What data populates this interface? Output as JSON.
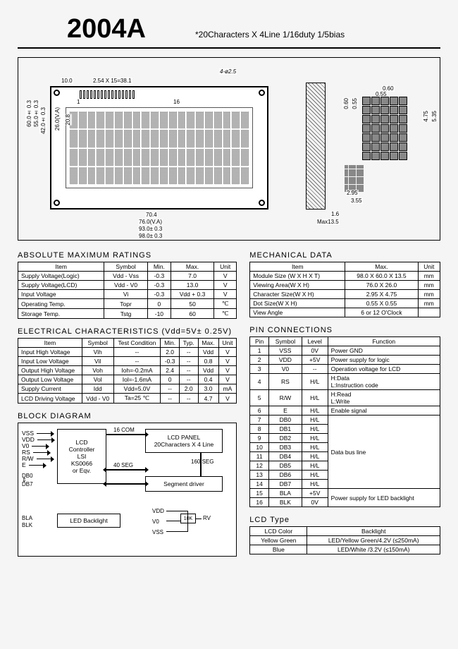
{
  "header": {
    "title": "2004A",
    "subtitle": "*20Characters X 4Line   1/16duty  1/5bias"
  },
  "dims": {
    "top1": "10.0",
    "top2": "2.54 X 15=38.1",
    "top3": "4-ø2.5",
    "pin1": "1",
    "pin16": "16",
    "left1": "60.0± 0.3",
    "left2": "55.0± 0.3",
    "left3": "42.0± 0.3",
    "left4": "26.0(V.A)",
    "left5": "20.8",
    "bot1": "70.4",
    "bot2": "76.0(V.A)",
    "bot3": "93.0± 0.3",
    "bot4": "98.0± 0.3",
    "side1": "1.6",
    "side2": "Max13.5",
    "char1": "0.60",
    "char2": "0.55",
    "char3": "5.35",
    "char4": "4.75",
    "char5": "2.95",
    "char6": "3.55"
  },
  "abs_max": {
    "title": "ABSOLUTE MAXIMUM RATINGS",
    "headers": [
      "Item",
      "Symbol",
      "Min.",
      "Max.",
      "Unit"
    ],
    "rows": [
      [
        "Supply Voltage(Logic)",
        "Vdd - Vss",
        "-0.3",
        "7.0",
        "V"
      ],
      [
        "Supply Voltage(LCD)",
        "Vdd - V0",
        "-0.3",
        "13.0",
        "V"
      ],
      [
        "Input Voltage",
        "Vi",
        "-0.3",
        "Vdd + 0.3",
        "V"
      ],
      [
        "Operating Temp.",
        "Topr",
        "0",
        "50",
        "℃"
      ],
      [
        "Storage Temp.",
        "Tstg",
        "-10",
        "60",
        "℃"
      ]
    ]
  },
  "mech": {
    "title": "MECHANICAL DATA",
    "headers": [
      "Item",
      "Max.",
      "Unit"
    ],
    "rows": [
      [
        "Module Size (W X H X T)",
        "98.0 X 60.0 X 13.5",
        "mm"
      ],
      [
        "Viewing Area(W X H)",
        "76.0 X 26.0",
        "mm"
      ],
      [
        "Character Size(W X H)",
        "2.95 X 4.75",
        "mm"
      ],
      [
        "Dot Size(W X H)",
        "0.55 X 0.55",
        "mm"
      ],
      [
        "View Angle",
        "6  or  12 O'Clock",
        ""
      ]
    ]
  },
  "elec": {
    "title": "ELECTRICAL  CHARACTERISTICS (Vdd=5V± 0.25V)",
    "headers": [
      "Item",
      "Symbol",
      "Test Condition",
      "Min.",
      "Typ.",
      "Max.",
      "Unit"
    ],
    "rows": [
      [
        "Input High Voltage",
        "Vih",
        "--",
        "2.0",
        "--",
        "Vdd",
        "V"
      ],
      [
        "Input Low Voltage",
        "Vil",
        "--",
        "-0.3",
        "--",
        "0.8",
        "V"
      ],
      [
        "Output High Voltage",
        "Voh",
        "Ioh=-0.2mA",
        "2.4",
        "--",
        "Vdd",
        "V"
      ],
      [
        "Output Low Voltage",
        "Vol",
        "Iol=-1.6mA",
        "0",
        "--",
        "0.4",
        "V"
      ],
      [
        "Supply Current",
        "Idd",
        "Vdd=5.0V",
        "--",
        "2.0",
        "3.0",
        "mA"
      ],
      [
        "LCD Driving Voltage",
        "Vdd - V0",
        "Ta=25 ℃",
        "--",
        "--",
        "4.7",
        "V"
      ]
    ]
  },
  "pins": {
    "title": "PIN  CONNECTIONS",
    "headers": [
      "Pin",
      "Symbol",
      "Level",
      "Function"
    ],
    "rows": [
      [
        "1",
        "VSS",
        "0V",
        "Power  GND"
      ],
      [
        "2",
        "VDD",
        "+5V",
        "Power supply for logic"
      ],
      [
        "3",
        "V0",
        "--",
        "Operation voltage for LCD"
      ],
      [
        "4",
        "RS",
        "H/L",
        "H:Data\nL:Instruction code"
      ],
      [
        "5",
        "R/W",
        "H/L",
        "H:Read\nL:Write"
      ],
      [
        "6",
        "E",
        "H/L",
        "Enable signal"
      ],
      [
        "7",
        "DB0",
        "H/L",
        ""
      ],
      [
        "8",
        "DB1",
        "H/L",
        ""
      ],
      [
        "9",
        "DB2",
        "H/L",
        ""
      ],
      [
        "10",
        "DB3",
        "H/L",
        "Data bus line"
      ],
      [
        "11",
        "DB4",
        "H/L",
        ""
      ],
      [
        "12",
        "DB5",
        "H/L",
        ""
      ],
      [
        "13",
        "DB6",
        "H/L",
        ""
      ],
      [
        "14",
        "DB7",
        "H/L",
        ""
      ],
      [
        "15",
        "BLA",
        "+5V",
        "Power supply for LED backlight"
      ],
      [
        "16",
        "BLK",
        "0V",
        ""
      ]
    ]
  },
  "block": {
    "title": "BLOCK  DIAGRAM",
    "signals": [
      "VSS",
      "VDD",
      "V0",
      "RS",
      "R/W",
      "E"
    ],
    "db": "DB0\n⇕\nDB7",
    "ctrl": "LCD\nController\nLSI\nKS0066\nor Eqv.",
    "panel": "LCD    PANEL\n20Characters X 4 Line",
    "seg": "Segment  driver",
    "com": "16 COM",
    "s40": "40 SEG",
    "s160": "160 SEG",
    "bl": "LED  Backlight",
    "bla": "BLA",
    "blk": "BLK",
    "vdd": "VDD",
    "v0": "V0",
    "vss": "VSS",
    "rv": "RV",
    "pot": "10K"
  },
  "lcdtype": {
    "title": "LCD  Type",
    "headers": [
      "LCD  Color",
      "Backlight"
    ],
    "rows": [
      [
        "Yellow Green",
        "LED/Yellow Green/4.2V (≤250mA)"
      ],
      [
        "Blue",
        "LED/White /3.2V (≤150mA)"
      ]
    ]
  }
}
